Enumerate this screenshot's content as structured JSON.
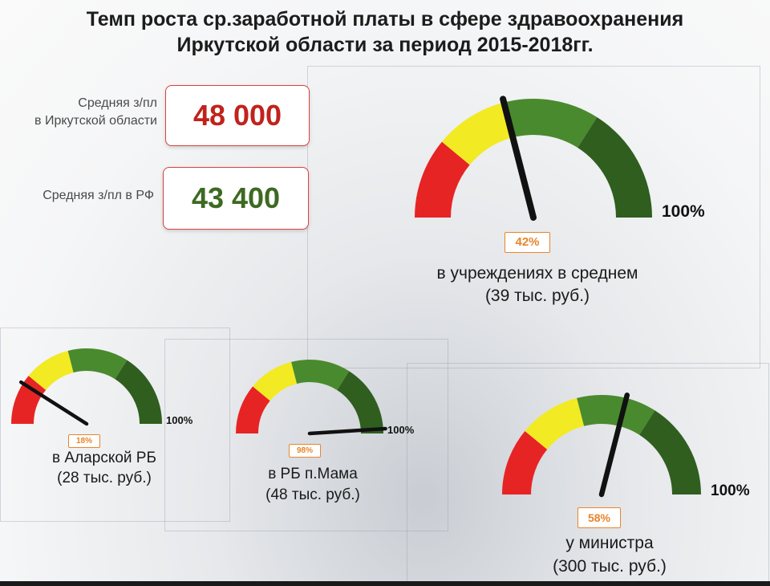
{
  "title": {
    "line1": "Темп роста ср.заработной платы в сфере здравоохранения",
    "line2": "Иркутской области за период 2015-2018гг."
  },
  "stats": {
    "irkutsk": {
      "label_line1": "Средняя з/пл",
      "label_line2": "в Иркутской области",
      "value": "48 000",
      "color": "#c0231c"
    },
    "rf": {
      "label": "Средняя з/пл в РФ",
      "value": "43 400",
      "color": "#3d6a22"
    }
  },
  "colors": {
    "red": "#e72424",
    "yellow": "#f2ea22",
    "green": "#4a8a2e",
    "dark_green": "#2f5e1f",
    "needle": "#111111",
    "badge": "#e8852a"
  },
  "gauges": [
    {
      "id": "avg",
      "value_pct": 42,
      "badge": "42%",
      "max_label": "100%",
      "caption_line1": "в учреждениях в среднем",
      "caption_line2": "(39 тыс. руб.)"
    },
    {
      "id": "alar",
      "value_pct": 18,
      "badge": "18%",
      "max_label": "100%",
      "caption_line1": "в Аларской РБ",
      "caption_line2": "(28 тыс. руб.)"
    },
    {
      "id": "mama",
      "value_pct": 98,
      "badge": "98%",
      "max_label": "100%",
      "caption_line1": "в РБ п.Мама",
      "caption_line2": "(48 тыс. руб.)"
    },
    {
      "id": "minister",
      "value_pct": 58,
      "badge": "58%",
      "max_label": "100%",
      "caption_line1": "у министра",
      "caption_line2": "(300 тыс. руб.)"
    }
  ]
}
